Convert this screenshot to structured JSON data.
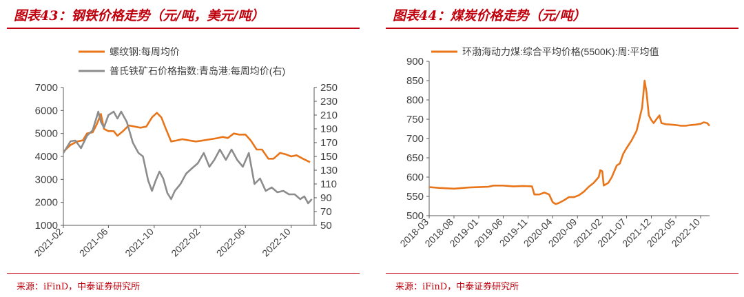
{
  "colors": {
    "accent": "#c0000c",
    "orange": "#e8751a",
    "gray": "#8c8c8c",
    "axis": "#595959",
    "text": "#404040"
  },
  "panels": [
    {
      "title": "图表43：钢铁价格走势（元/吨，美元/吨）",
      "source": "来源：iFinD，中泰证券研究所"
    },
    {
      "title": "图表44：煤炭价格走势（元/吨）",
      "source": "来源：iFinD，中泰证券研究所"
    }
  ],
  "chart_data": [
    {
      "type": "line",
      "title": "",
      "x_ticks": [
        "2021-02",
        "2021-06",
        "2021-10",
        "2022-02",
        "2022-06",
        "2022-10"
      ],
      "x_range": [
        "2021-02-01",
        "2022-12-01"
      ],
      "ylim": [
        1000,
        7000
      ],
      "y_ticks": [
        1000,
        2000,
        3000,
        4000,
        5000,
        6000,
        7000
      ],
      "y2lim": [
        50,
        250
      ],
      "y2_ticks": [
        50,
        70,
        90,
        110,
        130,
        150,
        170,
        190,
        210,
        230,
        250
      ],
      "legend_position": "top-left",
      "grid": false,
      "series": [
        {
          "name": "螺纹钢:每周均价",
          "axis": "left",
          "color": "#e8751a",
          "points": [
            [
              "2021-02-01",
              4200
            ],
            [
              "2021-02-20",
              4500
            ],
            [
              "2021-03-10",
              4650
            ],
            [
              "2021-03-25",
              4700
            ],
            [
              "2021-04-05",
              5000
            ],
            [
              "2021-04-20",
              5050
            ],
            [
              "2021-05-01",
              5400
            ],
            [
              "2021-05-12",
              5850
            ],
            [
              "2021-05-20",
              5200
            ],
            [
              "2021-06-01",
              5100
            ],
            [
              "2021-06-15",
              5100
            ],
            [
              "2021-06-25",
              4900
            ],
            [
              "2021-07-10",
              5100
            ],
            [
              "2021-07-25",
              5350
            ],
            [
              "2021-08-10",
              5300
            ],
            [
              "2021-08-25",
              5250
            ],
            [
              "2021-09-10",
              5300
            ],
            [
              "2021-09-25",
              5700
            ],
            [
              "2021-10-08",
              5900
            ],
            [
              "2021-10-20",
              5700
            ],
            [
              "2021-11-01",
              5200
            ],
            [
              "2021-11-15",
              4650
            ],
            [
              "2021-12-01",
              4700
            ],
            [
              "2021-12-15",
              4750
            ],
            [
              "2022-01-01",
              4700
            ],
            [
              "2022-01-20",
              4650
            ],
            [
              "2022-02-10",
              4700
            ],
            [
              "2022-03-01",
              4750
            ],
            [
              "2022-03-20",
              4800
            ],
            [
              "2022-04-01",
              4850
            ],
            [
              "2022-04-15",
              4800
            ],
            [
              "2022-05-01",
              5000
            ],
            [
              "2022-05-15",
              4950
            ],
            [
              "2022-06-01",
              4950
            ],
            [
              "2022-06-15",
              4700
            ],
            [
              "2022-07-01",
              4300
            ],
            [
              "2022-07-15",
              4300
            ],
            [
              "2022-08-01",
              3900
            ],
            [
              "2022-08-15",
              3900
            ],
            [
              "2022-09-01",
              4150
            ],
            [
              "2022-09-15",
              4100
            ],
            [
              "2022-10-01",
              4000
            ],
            [
              "2022-10-15",
              4050
            ],
            [
              "2022-11-01",
              3900
            ],
            [
              "2022-11-20",
              3750
            ]
          ]
        },
        {
          "name": "普氏铁矿石价格指数:青岛港:每周均价(右)",
          "axis": "right",
          "color": "#8c8c8c",
          "points": [
            [
              "2021-02-01",
              155
            ],
            [
              "2021-02-20",
              172
            ],
            [
              "2021-03-05",
              173
            ],
            [
              "2021-03-20",
              162
            ],
            [
              "2021-04-05",
              180
            ],
            [
              "2021-04-20",
              188
            ],
            [
              "2021-05-05",
              215
            ],
            [
              "2021-05-12",
              200
            ],
            [
              "2021-05-20",
              192
            ],
            [
              "2021-06-01",
              210
            ],
            [
              "2021-06-15",
              215
            ],
            [
              "2021-06-25",
              205
            ],
            [
              "2021-07-05",
              215
            ],
            [
              "2021-07-20",
              200
            ],
            [
              "2021-08-05",
              170
            ],
            [
              "2021-08-20",
              155
            ],
            [
              "2021-09-01",
              150
            ],
            [
              "2021-09-15",
              115
            ],
            [
              "2021-09-25",
              100
            ],
            [
              "2021-10-05",
              115
            ],
            [
              "2021-10-15",
              128
            ],
            [
              "2021-10-25",
              118
            ],
            [
              "2021-11-05",
              97
            ],
            [
              "2021-11-15",
              88
            ],
            [
              "2021-11-25",
              100
            ],
            [
              "2021-12-10",
              110
            ],
            [
              "2021-12-25",
              125
            ],
            [
              "2022-01-10",
              133
            ],
            [
              "2022-01-25",
              140
            ],
            [
              "2022-02-10",
              155
            ],
            [
              "2022-02-25",
              135
            ],
            [
              "2022-03-10",
              145
            ],
            [
              "2022-03-25",
              160
            ],
            [
              "2022-04-10",
              145
            ],
            [
              "2022-04-25",
              160
            ],
            [
              "2022-05-10",
              145
            ],
            [
              "2022-05-25",
              135
            ],
            [
              "2022-06-10",
              155
            ],
            [
              "2022-06-25",
              110
            ],
            [
              "2022-07-10",
              118
            ],
            [
              "2022-07-25",
              100
            ],
            [
              "2022-08-10",
              105
            ],
            [
              "2022-08-25",
              98
            ],
            [
              "2022-09-10",
              100
            ],
            [
              "2022-09-25",
              95
            ],
            [
              "2022-10-10",
              95
            ],
            [
              "2022-10-25",
              88
            ],
            [
              "2022-11-05",
              92
            ],
            [
              "2022-11-15",
              82
            ],
            [
              "2022-11-25",
              88
            ]
          ]
        }
      ]
    },
    {
      "type": "line",
      "title": "",
      "x_ticks": [
        "2018-03",
        "2018-08",
        "2019-01",
        "2019-06",
        "2019-11",
        "2020-04",
        "2020-09",
        "2021-02",
        "2021-07",
        "2021-12",
        "2022-05",
        "2022-10"
      ],
      "x_range": [
        "2018-03-01",
        "2022-11-25"
      ],
      "ylim": [
        500,
        900
      ],
      "y_ticks": [
        500,
        550,
        600,
        650,
        700,
        750,
        800,
        850,
        900
      ],
      "legend_position": "top-left",
      "grid": false,
      "series": [
        {
          "name": "环渤海动力煤:综合平均价格(5500K):周:平均值",
          "axis": "left",
          "color": "#e8751a",
          "points": [
            [
              "2018-03-01",
              574
            ],
            [
              "2018-05-01",
              572
            ],
            [
              "2018-08-01",
              570
            ],
            [
              "2018-11-01",
              573
            ],
            [
              "2019-01-01",
              574
            ],
            [
              "2019-03-01",
              575
            ],
            [
              "2019-04-01",
              578
            ],
            [
              "2019-06-01",
              578
            ],
            [
              "2019-08-01",
              576
            ],
            [
              "2019-10-01",
              577
            ],
            [
              "2019-11-25",
              576
            ],
            [
              "2019-12-10",
              555
            ],
            [
              "2020-01-10",
              555
            ],
            [
              "2020-02-10",
              560
            ],
            [
              "2020-03-10",
              555
            ],
            [
              "2020-04-01",
              535
            ],
            [
              "2020-04-20",
              530
            ],
            [
              "2020-05-10",
              533
            ],
            [
              "2020-06-10",
              540
            ],
            [
              "2020-07-10",
              548
            ],
            [
              "2020-08-10",
              548
            ],
            [
              "2020-09-10",
              553
            ],
            [
              "2020-10-10",
              562
            ],
            [
              "2020-11-10",
              575
            ],
            [
              "2020-12-10",
              585
            ],
            [
              "2021-01-10",
              600
            ],
            [
              "2021-01-20",
              618
            ],
            [
              "2021-02-01",
              615
            ],
            [
              "2021-02-10",
              578
            ],
            [
              "2021-03-10",
              585
            ],
            [
              "2021-04-01",
              600
            ],
            [
              "2021-05-01",
              630
            ],
            [
              "2021-05-20",
              635
            ],
            [
              "2021-06-10",
              660
            ],
            [
              "2021-07-01",
              675
            ],
            [
              "2021-08-01",
              695
            ],
            [
              "2021-09-01",
              720
            ],
            [
              "2021-10-05",
              780
            ],
            [
              "2021-10-20",
              850
            ],
            [
              "2021-11-01",
              820
            ],
            [
              "2021-11-15",
              760
            ],
            [
              "2021-12-01",
              748
            ],
            [
              "2021-12-15",
              740
            ],
            [
              "2022-01-10",
              755
            ],
            [
              "2022-01-20",
              760
            ],
            [
              "2022-02-01",
              740
            ],
            [
              "2022-03-01",
              737
            ],
            [
              "2022-04-01",
              736
            ],
            [
              "2022-05-01",
              735
            ],
            [
              "2022-06-01",
              733
            ],
            [
              "2022-07-01",
              733
            ],
            [
              "2022-08-01",
              735
            ],
            [
              "2022-09-01",
              736
            ],
            [
              "2022-10-01",
              738
            ],
            [
              "2022-10-20",
              742
            ],
            [
              "2022-11-10",
              740
            ],
            [
              "2022-11-25",
              733
            ]
          ]
        }
      ]
    }
  ]
}
